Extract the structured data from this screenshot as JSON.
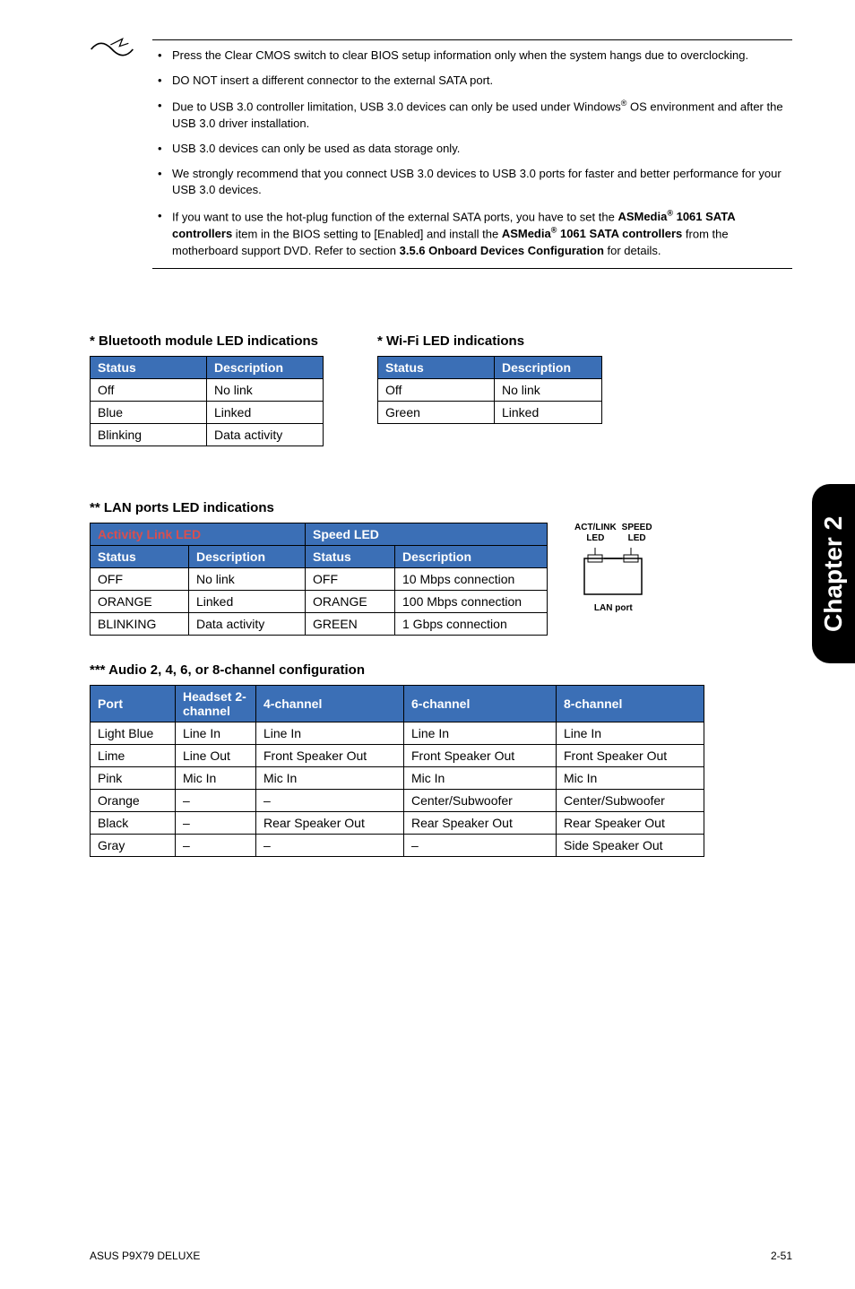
{
  "colors": {
    "header_bg": "#3b6fb6",
    "header_text": "#ffffff",
    "border": "#000000",
    "side_tab_bg": "#000000",
    "side_tab_text": "#ffffff"
  },
  "side_tab": "Chapter 2",
  "notes": [
    "Press the Clear CMOS switch to clear BIOS setup information only when the system hangs due to overclocking.",
    "DO NOT insert a different connector to the external SATA port.",
    "Due to USB 3.0 controller limitation, USB 3.0 devices can only be used under Windows<span class=\"sup\">®</span> OS environment and after the USB 3.0 driver installation.",
    "USB 3.0 devices can only be used as data storage only.",
    "We strongly recommend that you connect USB 3.0 devices to USB 3.0 ports for faster and better performance for your USB 3.0 devices.",
    "If you want to use the hot-plug function of the external SATA ports, you have to set the <b>ASMedia<span class=\"sup\">®</span> 1061 SATA controllers</b> item in the BIOS setting to [Enabled] and install the <b>ASMedia<span class=\"sup\">®</span> 1061 SATA controllers</b> from the motherboard support DVD. Refer to section <b>3.5.6 Onboard Devices Configuration</b> for details."
  ],
  "bluetooth": {
    "title": "* Bluetooth module LED indications",
    "columns": [
      "Status",
      "Description"
    ],
    "rows": [
      [
        "Off",
        "No link"
      ],
      [
        "Blue",
        "Linked"
      ],
      [
        "Blinking",
        "Data activity"
      ]
    ],
    "col_widths": [
      "130px",
      "130px"
    ]
  },
  "wifi": {
    "title": "* Wi-Fi LED indications",
    "columns": [
      "Status",
      "Description"
    ],
    "rows": [
      [
        "Off",
        "No link"
      ],
      [
        "Green",
        "Linked"
      ]
    ],
    "col_widths": [
      "130px",
      "120px"
    ]
  },
  "lan": {
    "title": "** LAN ports LED indications",
    "group_headers": [
      "Activity Link LED",
      "Speed LED"
    ],
    "columns": [
      "Status",
      "Description",
      "Status",
      "Description"
    ],
    "rows": [
      [
        "OFF",
        "No link",
        "OFF",
        "10 Mbps connection"
      ],
      [
        "ORANGE",
        "Linked",
        "ORANGE",
        "100 Mbps connection"
      ],
      [
        "BLINKING",
        "Data activity",
        "GREEN",
        "1 Gbps connection"
      ]
    ],
    "col_widths": [
      "110px",
      "130px",
      "100px",
      "170px"
    ],
    "diagram": {
      "top_left": "ACT/LINK",
      "top_right": "SPEED",
      "led_label": "LED",
      "bottom": "LAN port"
    }
  },
  "audio": {
    "title": "*** Audio 2, 4, 6, or 8-channel configuration",
    "columns": [
      "Port",
      "Headset 2-channel",
      "4-channel",
      "6-channel",
      "8-channel"
    ],
    "rows": [
      [
        "Light Blue",
        "Line In",
        "Line In",
        "Line In",
        "Line In"
      ],
      [
        "Lime",
        "Line Out",
        "Front Speaker Out",
        "Front Speaker Out",
        "Front Speaker Out"
      ],
      [
        "Pink",
        "Mic In",
        "Mic In",
        "Mic In",
        "Mic In"
      ],
      [
        "Orange",
        "–",
        "–",
        "Center/Subwoofer",
        "Center/Subwoofer"
      ],
      [
        "Black",
        "–",
        "Rear Speaker Out",
        "Rear Speaker Out",
        "Rear Speaker Out"
      ],
      [
        "Gray",
        "–",
        "–",
        "–",
        "Side Speaker Out"
      ]
    ],
    "col_widths": [
      "95px",
      "90px",
      "165px",
      "170px",
      "165px"
    ]
  },
  "footer": {
    "left": "ASUS P9X79 DELUXE",
    "right": "2-51"
  }
}
